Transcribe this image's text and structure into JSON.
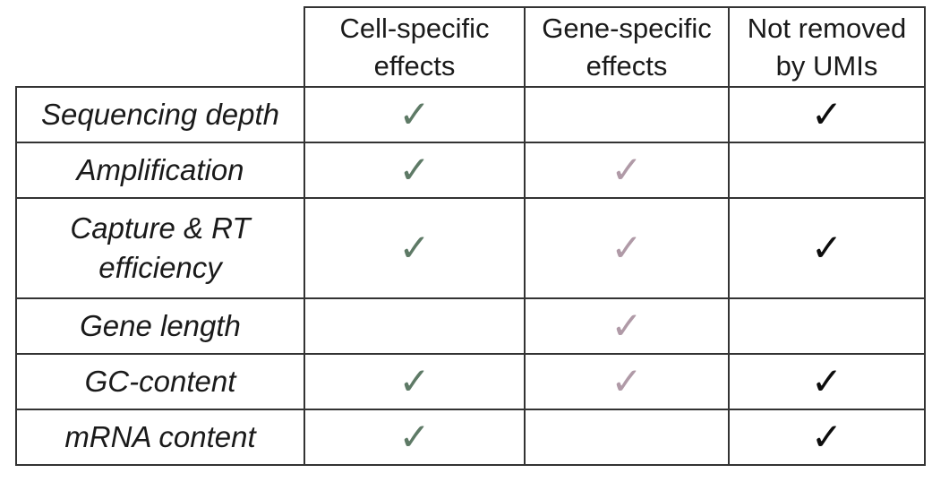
{
  "table": {
    "columns": [
      {
        "line1": "Cell-specific",
        "line2": "effects"
      },
      {
        "line1": "Gene-specific",
        "line2": "effects"
      },
      {
        "line1": "Not removed",
        "line2": "by UMIs"
      }
    ],
    "rows": [
      {
        "label_lines": [
          "Sequencing depth"
        ],
        "cell_specific": "✓",
        "gene_specific": "",
        "not_removed_by_umis": "✓"
      },
      {
        "label_lines": [
          "Amplification"
        ],
        "cell_specific": "✓",
        "gene_specific": "✓",
        "not_removed_by_umis": ""
      },
      {
        "label_lines": [
          "Capture & RT",
          "efficiency"
        ],
        "cell_specific": "✓",
        "gene_specific": "✓",
        "not_removed_by_umis": "✓"
      },
      {
        "label_lines": [
          "Gene length"
        ],
        "cell_specific": "",
        "gene_specific": "✓",
        "not_removed_by_umis": ""
      },
      {
        "label_lines": [
          "GC-content"
        ],
        "cell_specific": "✓",
        "gene_specific": "✓",
        "not_removed_by_umis": "✓"
      },
      {
        "label_lines": [
          "mRNA content"
        ],
        "cell_specific": "✓",
        "gene_specific": "",
        "not_removed_by_umis": "✓"
      }
    ]
  },
  "colors": {
    "cell_specific_check": "#5e7a66",
    "gene_specific_check": "#b09aa7",
    "not_removed_check": "#0d0d0d",
    "grid": "#333333"
  }
}
